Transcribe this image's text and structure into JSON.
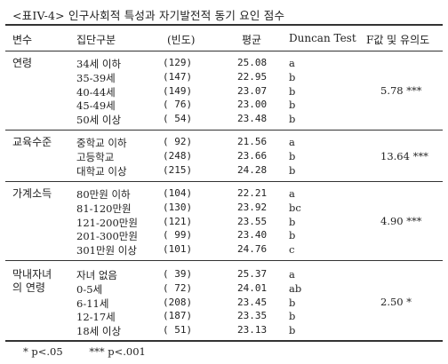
{
  "caption": "<표IV-4> 인구사회적 특성과 자기발전적 동기 요인 점수",
  "header": {
    "variable": "변수",
    "group": "집단구분",
    "n": "(빈도)",
    "mean": "평균",
    "duncan": "Duncan Test",
    "f": "F값 및 유의도"
  },
  "groups": [
    {
      "label_lines": [
        "연령"
      ],
      "f_value": "5.78 ***",
      "rows": [
        {
          "group": "34세 이하",
          "n": "(129)",
          "mean": "25.08",
          "duncan": "a"
        },
        {
          "group": "35-39세",
          "n": "(147)",
          "mean": "22.95",
          "duncan": "b"
        },
        {
          "group": "40-44세",
          "n": "(149)",
          "mean": "23.07",
          "duncan": "b"
        },
        {
          "group": "45-49세",
          "n": "( 76)",
          "mean": "23.00",
          "duncan": "b"
        },
        {
          "group": "50세 이상",
          "n": "( 54)",
          "mean": "23.48",
          "duncan": "b"
        }
      ]
    },
    {
      "label_lines": [
        "교육수준"
      ],
      "f_value": "13.64 ***",
      "rows": [
        {
          "group": "중학교 이하",
          "n": "( 92)",
          "mean": "21.56",
          "duncan": "a"
        },
        {
          "group": "고등학교",
          "n": "(248)",
          "mean": "23.66",
          "duncan": "b"
        },
        {
          "group": "대학교 이상",
          "n": "(215)",
          "mean": "24.28",
          "duncan": "b"
        }
      ]
    },
    {
      "label_lines": [
        "가계소득"
      ],
      "f_value": "4.90 ***",
      "rows": [
        {
          "group": "80만원 이하",
          "n": "(104)",
          "mean": "22.21",
          "duncan": "a"
        },
        {
          "group": "81-120만원",
          "n": "(130)",
          "mean": "23.92",
          "duncan": "bc"
        },
        {
          "group": "121-200만원",
          "n": "(121)",
          "mean": "23.55",
          "duncan": "b"
        },
        {
          "group": "201-300만원",
          "n": "( 99)",
          "mean": "23.40",
          "duncan": "b"
        },
        {
          "group": "301만원 이상",
          "n": "(101)",
          "mean": "24.76",
          "duncan": "c"
        }
      ]
    },
    {
      "label_lines": [
        "막내자녀",
        "의 연령"
      ],
      "f_value": "2.50 *",
      "rows": [
        {
          "group": "자녀 없음",
          "n": "( 39)",
          "mean": "25.37",
          "duncan": "a"
        },
        {
          "group": "0-5세",
          "n": "( 72)",
          "mean": "24.01",
          "duncan": "ab"
        },
        {
          "group": "6-11세",
          "n": "(208)",
          "mean": "23.45",
          "duncan": "b"
        },
        {
          "group": "12-17세",
          "n": "(187)",
          "mean": "23.35",
          "duncan": "b"
        },
        {
          "group": "18세 이상",
          "n": "( 51)",
          "mean": "23.13",
          "duncan": "b"
        }
      ]
    }
  ],
  "footnotes": [
    "* p<.05",
    "*** p<.001"
  ]
}
